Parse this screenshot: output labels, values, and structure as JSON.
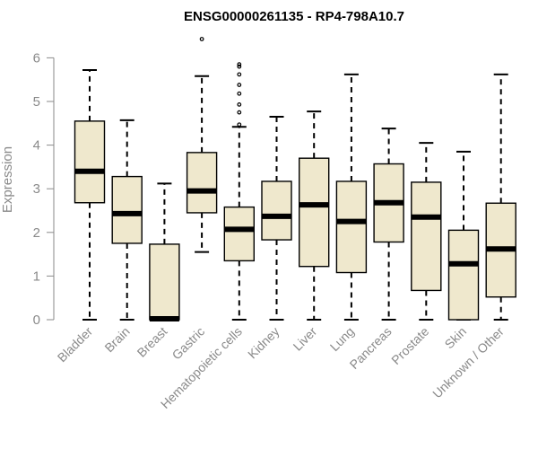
{
  "chart_data": {
    "type": "boxplot",
    "title": "ENSG00000261135 - RP4-798A10.7",
    "xlabel": "",
    "ylabel": "Expression",
    "ylim": [
      0,
      6.3
    ],
    "yticks": [
      0,
      1,
      2,
      3,
      4,
      5,
      6
    ],
    "grid": false,
    "box_color": "#efe8cd",
    "categories": [
      "Bladder",
      "Brain",
      "Breast",
      "Gastric",
      "Hematopoietic cells",
      "Kidney",
      "Liver",
      "Lung",
      "Pancreas",
      "Prostate",
      "Skin",
      "Unknown / Other"
    ],
    "boxes": [
      {
        "min": 0.0,
        "q1": 2.68,
        "median": 3.4,
        "q3": 4.55,
        "max": 5.72,
        "outliers": []
      },
      {
        "min": 0.0,
        "q1": 1.75,
        "median": 2.43,
        "q3": 3.28,
        "max": 4.57,
        "outliers": []
      },
      {
        "min": 0.0,
        "q1": 0.0,
        "median": 0.02,
        "q3": 1.73,
        "max": 3.12,
        "outliers": []
      },
      {
        "min": 1.55,
        "q1": 2.45,
        "median": 2.95,
        "q3": 3.83,
        "max": 5.58,
        "outliers": [
          6.43
        ]
      },
      {
        "min": 0.0,
        "q1": 1.35,
        "median": 2.07,
        "q3": 2.58,
        "max": 4.42,
        "outliers": [
          4.47,
          4.75,
          4.93,
          5.18,
          5.38,
          5.62,
          5.8,
          5.85
        ]
      },
      {
        "min": 0.0,
        "q1": 1.83,
        "median": 2.37,
        "q3": 3.17,
        "max": 4.65,
        "outliers": []
      },
      {
        "min": 0.0,
        "q1": 1.22,
        "median": 2.63,
        "q3": 3.7,
        "max": 4.77,
        "outliers": []
      },
      {
        "min": 0.0,
        "q1": 1.08,
        "median": 2.25,
        "q3": 3.17,
        "max": 5.62,
        "outliers": []
      },
      {
        "min": 0.0,
        "q1": 1.78,
        "median": 2.68,
        "q3": 3.57,
        "max": 4.38,
        "outliers": []
      },
      {
        "min": 0.0,
        "q1": 0.67,
        "median": 2.35,
        "q3": 3.15,
        "max": 4.05,
        "outliers": []
      },
      {
        "min": 0.0,
        "q1": 0.0,
        "median": 1.28,
        "q3": 2.05,
        "max": 3.85,
        "outliers": []
      },
      {
        "min": 0.0,
        "q1": 0.52,
        "median": 1.62,
        "q3": 2.67,
        "max": 5.62,
        "outliers": []
      }
    ]
  }
}
